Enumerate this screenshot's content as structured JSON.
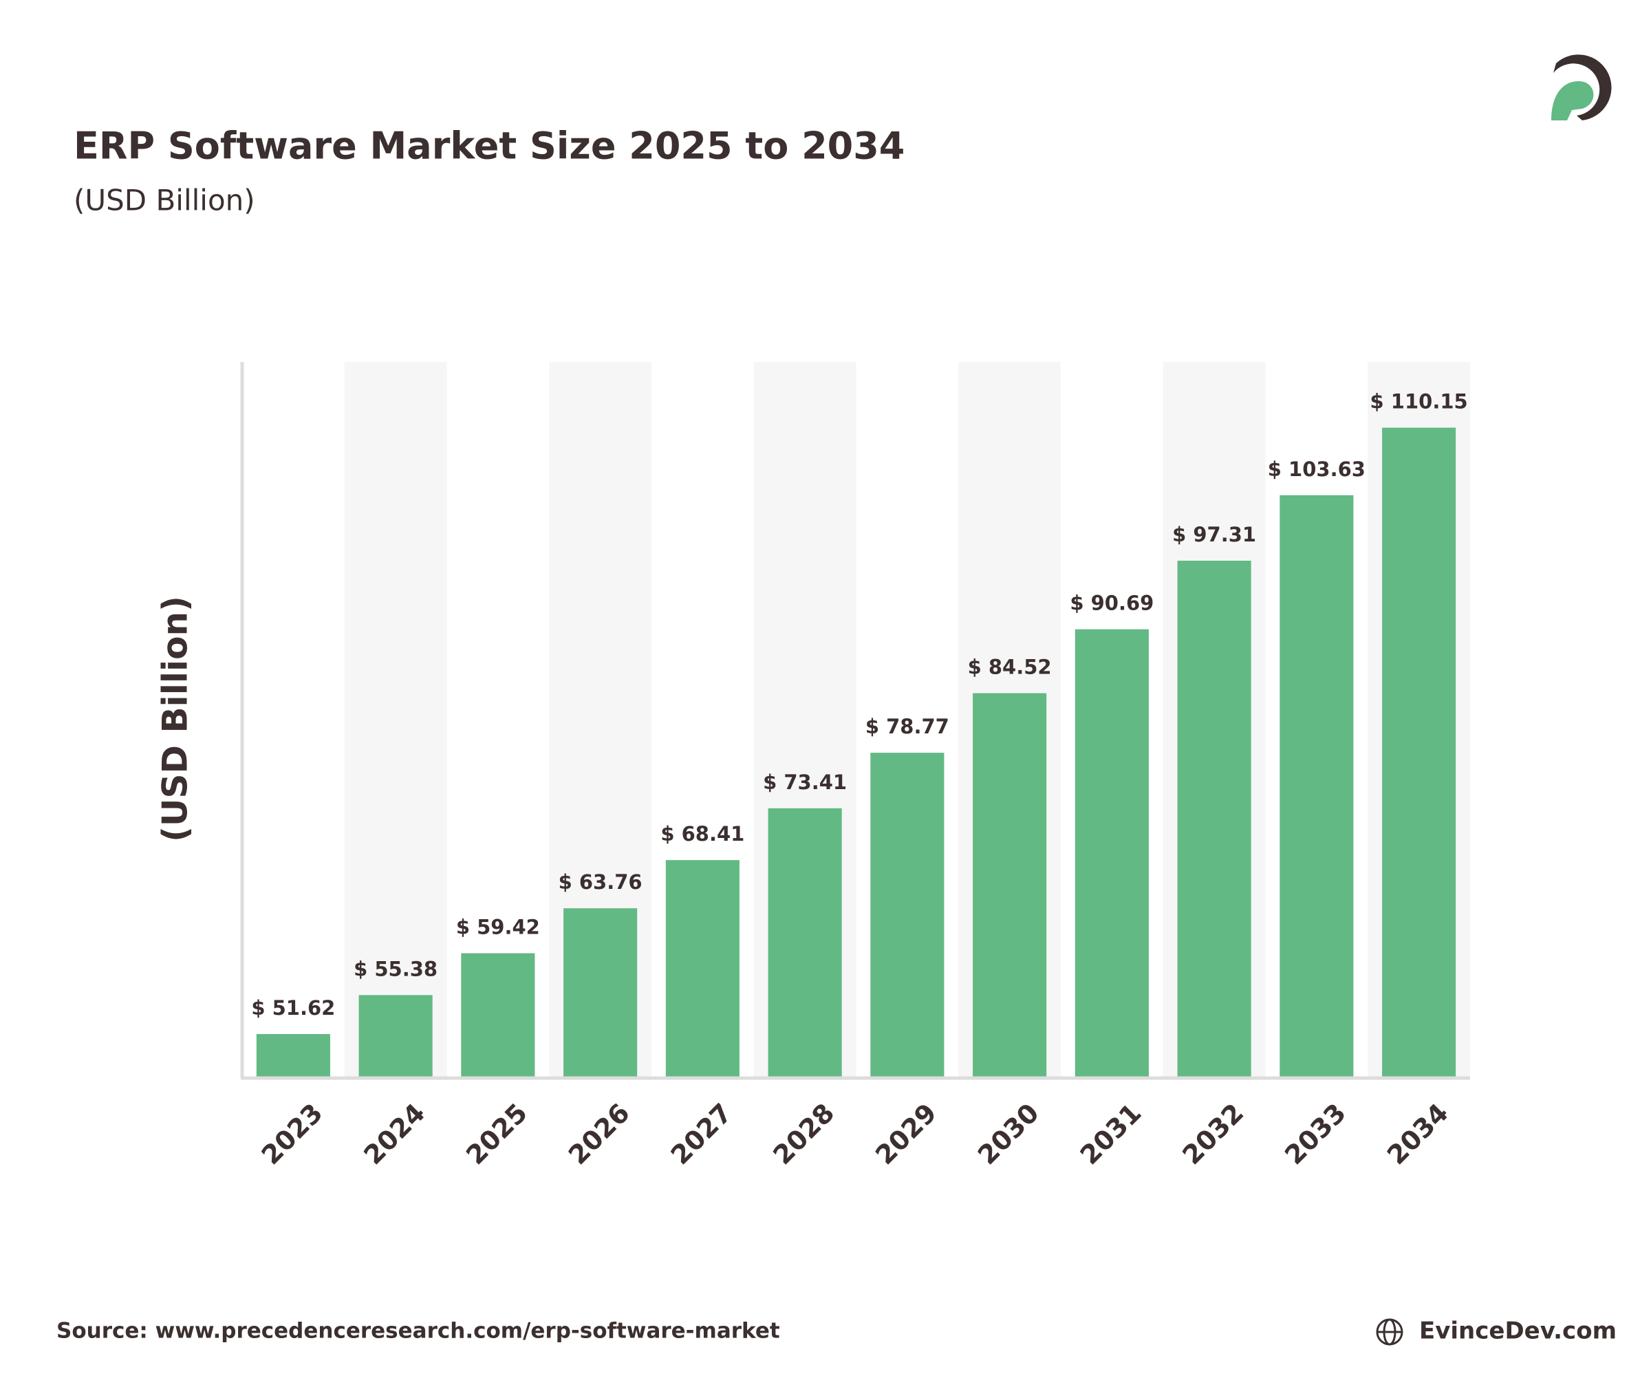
{
  "chart_data": {
    "type": "bar",
    "title": "ERP Software Market Size 2025 to 2034",
    "subtitle": "(USD Billion)",
    "y_label": "(USD Billion)",
    "categories": [
      "2023",
      "2024",
      "2025",
      "2026",
      "2027",
      "2028",
      "2029",
      "2030",
      "2031",
      "2032",
      "2033",
      "2034"
    ],
    "values": [
      51.62,
      55.38,
      59.42,
      63.76,
      68.41,
      73.41,
      78.77,
      84.52,
      90.69,
      97.31,
      103.63,
      110.15
    ],
    "value_labels": [
      "$ 51.62",
      "$ 55.38",
      "$ 59.42",
      "$ 63.76",
      "$ 68.41",
      "$ 73.41",
      "$ 78.77",
      "$ 84.52",
      "$ 90.69",
      "$ 97.31",
      "$ 103.63",
      "$ 110.15"
    ],
    "color": "#62b984",
    "ylim": [
      47.5,
      116.5
    ]
  },
  "source": "Source: www.precedenceresearch.com/erp-software-market",
  "brand": "EvinceDev.com"
}
